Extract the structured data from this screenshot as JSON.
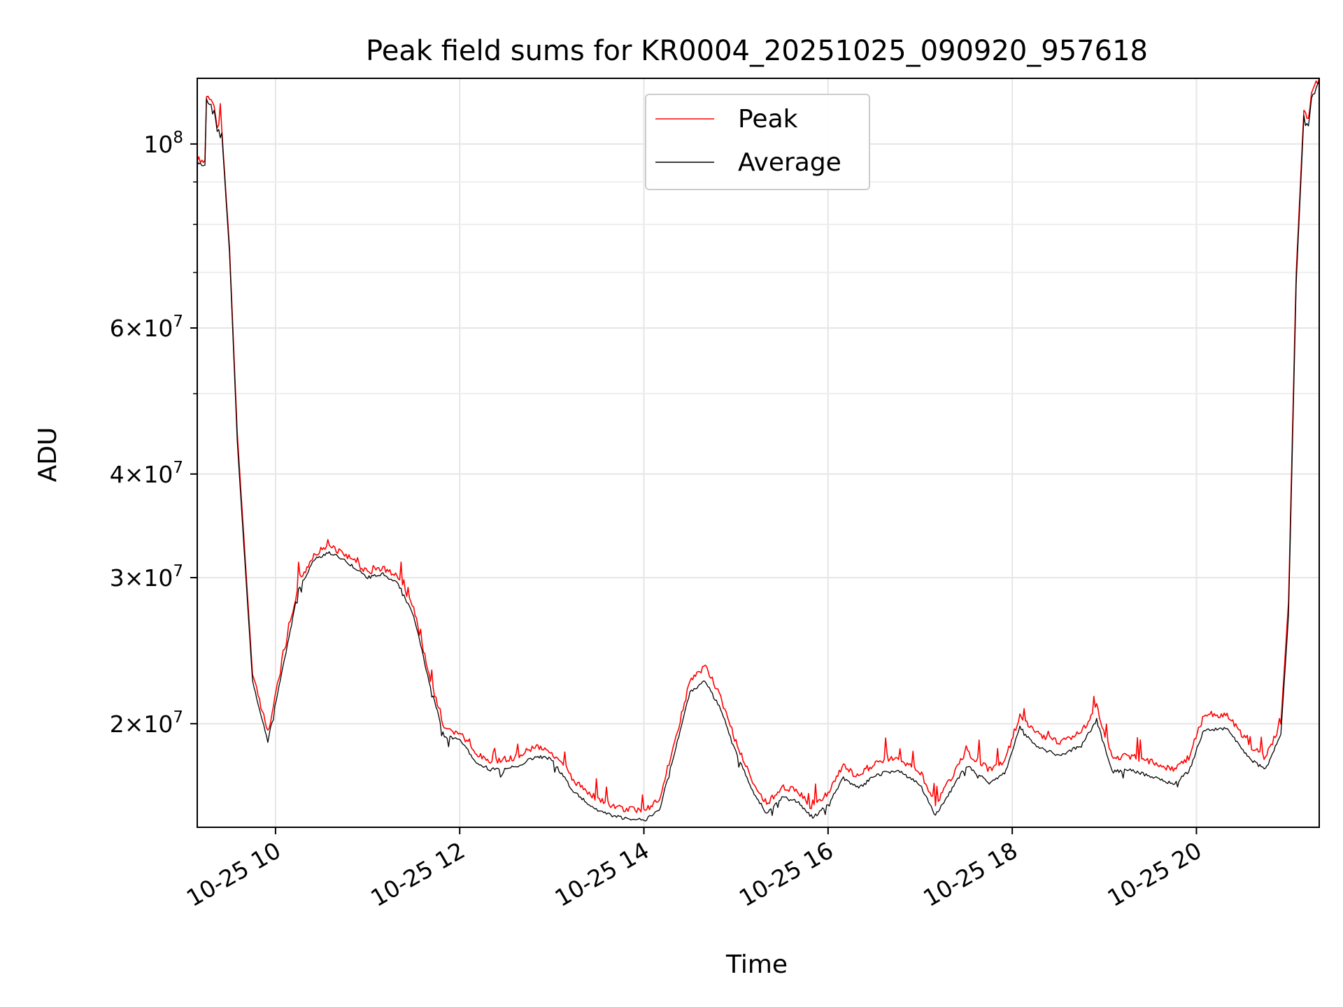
{
  "chart_data": {
    "type": "line",
    "title": "Peak field sums for KR0004_20251025_090920_957618",
    "xlabel": "Time",
    "ylabel": "ADU",
    "yscale": "log",
    "grid": true,
    "legend_position": "top-center",
    "xlim": [
      "2025-10-25 09:09",
      "2025-10-25 21:20"
    ],
    "ylim": [
      15000000,
      120000000
    ],
    "x_ticks": [
      "10-25 10",
      "10-25 12",
      "10-25 14",
      "10-25 16",
      "10-25 18",
      "10-25 20"
    ],
    "x_tick_times": [
      "2025-10-25 10:00",
      "2025-10-25 12:00",
      "2025-10-25 14:00",
      "2025-10-25 16:00",
      "2025-10-25 18:00",
      "2025-10-25 20:00"
    ],
    "y_tick_values": [
      20000000,
      30000000,
      40000000,
      60000000,
      100000000
    ],
    "y_tick_labels": [
      {
        "mantissa": "2",
        "exponent": "7"
      },
      {
        "mantissa": "3",
        "exponent": "7"
      },
      {
        "mantissa": "4",
        "exponent": "7"
      },
      {
        "mantissa": "6",
        "exponent": "7"
      },
      {
        "mantissa": "",
        "exponent": "8"
      }
    ],
    "y_minor_values": [
      50000000,
      70000000,
      80000000,
      90000000
    ],
    "colors": {
      "peak": "#ff0000",
      "average": "#000000"
    },
    "series": [
      {
        "name": "Peak",
        "x": [
          "2025-10-25 09:09",
          "2025-10-25 09:14",
          "2025-10-25 09:15",
          "2025-10-25 09:20",
          "2025-10-25 09:22",
          "2025-10-25 09:25",
          "2025-10-25 09:30",
          "2025-10-25 09:35",
          "2025-10-25 09:45",
          "2025-10-25 09:55",
          "2025-10-25 10:05",
          "2025-10-25 10:15",
          "2025-10-25 10:25",
          "2025-10-25 10:35",
          "2025-10-25 10:45",
          "2025-10-25 11:00",
          "2025-10-25 11:10",
          "2025-10-25 11:20",
          "2025-10-25 11:30",
          "2025-10-25 11:40",
          "2025-10-25 11:50",
          "2025-10-25 12:00",
          "2025-10-25 12:10",
          "2025-10-25 12:20",
          "2025-10-25 12:35",
          "2025-10-25 12:50",
          "2025-10-25 13:00",
          "2025-10-25 13:15",
          "2025-10-25 13:30",
          "2025-10-25 13:45",
          "2025-10-25 14:00",
          "2025-10-25 14:10",
          "2025-10-25 14:20",
          "2025-10-25 14:30",
          "2025-10-25 14:40",
          "2025-10-25 14:50",
          "2025-10-25 15:00",
          "2025-10-25 15:10",
          "2025-10-25 15:20",
          "2025-10-25 15:30",
          "2025-10-25 15:40",
          "2025-10-25 15:50",
          "2025-10-25 16:00",
          "2025-10-25 16:10",
          "2025-10-25 16:20",
          "2025-10-25 16:30",
          "2025-10-25 16:45",
          "2025-10-25 17:00",
          "2025-10-25 17:10",
          "2025-10-25 17:20",
          "2025-10-25 17:30",
          "2025-10-25 17:45",
          "2025-10-25 17:55",
          "2025-10-25 18:05",
          "2025-10-25 18:15",
          "2025-10-25 18:30",
          "2025-10-25 18:45",
          "2025-10-25 18:55",
          "2025-10-25 19:05",
          "2025-10-25 19:15",
          "2025-10-25 19:30",
          "2025-10-25 19:45",
          "2025-10-25 19:55",
          "2025-10-25 20:05",
          "2025-10-25 20:20",
          "2025-10-25 20:35",
          "2025-10-25 20:45",
          "2025-10-25 20:55",
          "2025-10-25 21:00",
          "2025-10-25 21:05",
          "2025-10-25 21:10",
          "2025-10-25 21:13",
          "2025-10-25 21:15",
          "2025-10-25 21:20"
        ],
        "y": [
          96000000,
          95000000,
          114000000,
          111000000,
          105000000,
          104000000,
          75000000,
          45000000,
          23000000,
          19500000,
          24000000,
          29500000,
          32000000,
          32800000,
          32000000,
          30500000,
          30800000,
          30000000,
          27500000,
          23000000,
          19600000,
          19500000,
          18400000,
          18000000,
          18200000,
          18800000,
          18500000,
          17000000,
          16200000,
          15800000,
          15700000,
          16200000,
          19000000,
          22500000,
          23500000,
          21500000,
          19000000,
          17200000,
          16000000,
          16800000,
          16600000,
          15800000,
          16500000,
          17800000,
          17200000,
          17900000,
          18200000,
          17500000,
          16000000,
          17200000,
          18500000,
          17600000,
          18000000,
          20500000,
          19500000,
          19000000,
          19500000,
          21000000,
          18200000,
          18300000,
          18000000,
          17600000,
          18200000,
          20500000,
          20500000,
          18800000,
          18200000,
          20000000,
          28000000,
          70000000,
          110000000,
          107000000,
          116000000,
          120000000
        ]
      },
      {
        "name": "Average",
        "x": [
          "2025-10-25 09:09",
          "2025-10-25 09:14",
          "2025-10-25 09:15",
          "2025-10-25 09:20",
          "2025-10-25 09:22",
          "2025-10-25 09:25",
          "2025-10-25 09:30",
          "2025-10-25 09:35",
          "2025-10-25 09:45",
          "2025-10-25 09:55",
          "2025-10-25 10:05",
          "2025-10-25 10:15",
          "2025-10-25 10:25",
          "2025-10-25 10:35",
          "2025-10-25 10:45",
          "2025-10-25 11:00",
          "2025-10-25 11:10",
          "2025-10-25 11:20",
          "2025-10-25 11:30",
          "2025-10-25 11:40",
          "2025-10-25 11:50",
          "2025-10-25 12:00",
          "2025-10-25 12:10",
          "2025-10-25 12:20",
          "2025-10-25 12:35",
          "2025-10-25 12:50",
          "2025-10-25 13:00",
          "2025-10-25 13:15",
          "2025-10-25 13:30",
          "2025-10-25 13:45",
          "2025-10-25 14:00",
          "2025-10-25 14:10",
          "2025-10-25 14:20",
          "2025-10-25 14:30",
          "2025-10-25 14:40",
          "2025-10-25 14:50",
          "2025-10-25 15:00",
          "2025-10-25 15:10",
          "2025-10-25 15:20",
          "2025-10-25 15:30",
          "2025-10-25 15:40",
          "2025-10-25 15:50",
          "2025-10-25 16:00",
          "2025-10-25 16:10",
          "2025-10-25 16:20",
          "2025-10-25 16:30",
          "2025-10-25 16:45",
          "2025-10-25 17:00",
          "2025-10-25 17:10",
          "2025-10-25 17:20",
          "2025-10-25 17:30",
          "2025-10-25 17:45",
          "2025-10-25 17:55",
          "2025-10-25 18:05",
          "2025-10-25 18:15",
          "2025-10-25 18:30",
          "2025-10-25 18:45",
          "2025-10-25 18:55",
          "2025-10-25 19:05",
          "2025-10-25 19:15",
          "2025-10-25 19:30",
          "2025-10-25 19:45",
          "2025-10-25 19:55",
          "2025-10-25 20:05",
          "2025-10-25 20:20",
          "2025-10-25 20:35",
          "2025-10-25 20:45",
          "2025-10-25 20:55",
          "2025-10-25 21:00",
          "2025-10-25 21:05",
          "2025-10-25 21:10",
          "2025-10-25 21:13",
          "2025-10-25 21:15",
          "2025-10-25 21:20"
        ],
        "y": [
          95000000,
          94000000,
          113000000,
          110000000,
          104000000,
          103000000,
          74000000,
          44000000,
          22500000,
          19000000,
          23500000,
          29000000,
          31500000,
          32200000,
          31500000,
          30000000,
          30300000,
          29500000,
          27000000,
          22500000,
          19300000,
          19200000,
          18000000,
          17600000,
          17700000,
          18300000,
          18100000,
          16500000,
          15700000,
          15400000,
          15300000,
          15700000,
          18500000,
          21800000,
          22500000,
          20800000,
          18500000,
          16700000,
          15600000,
          16300000,
          16100000,
          15400000,
          16000000,
          17200000,
          16700000,
          17300000,
          17600000,
          16900000,
          15500000,
          16600000,
          17800000,
          17000000,
          17400000,
          19800000,
          18800000,
          18300000,
          18800000,
          20200000,
          17500000,
          17600000,
          17300000,
          16900000,
          17500000,
          19700000,
          19700000,
          18100000,
          17600000,
          19400000,
          27000000,
          68000000,
          108000000,
          105000000,
          114000000,
          119000000
        ]
      }
    ]
  }
}
